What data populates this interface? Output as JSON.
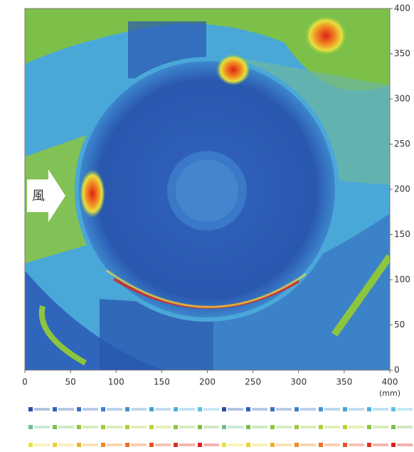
{
  "chart_data": {
    "type": "heatmap",
    "xlim": [
      0,
      400
    ],
    "ylim": [
      0,
      400
    ],
    "xticks": [
      0,
      50,
      100,
      150,
      200,
      250,
      300,
      350,
      400
    ],
    "yticks": [
      0,
      50,
      100,
      150,
      200,
      250,
      300,
      350,
      400
    ],
    "x_unit": "(mm)",
    "annotation": "風"
  }
}
